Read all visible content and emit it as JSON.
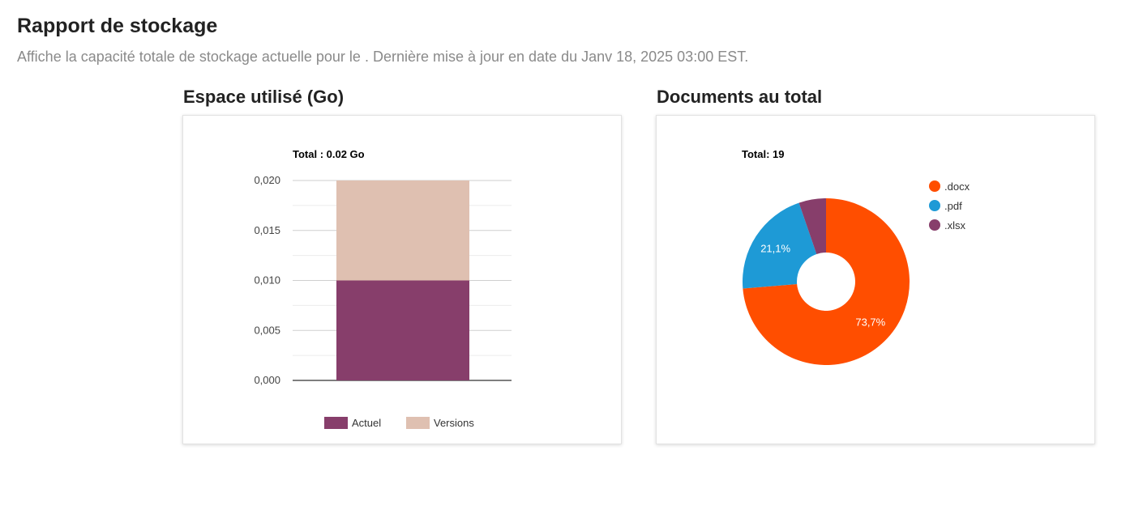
{
  "page": {
    "title": "Rapport de stockage",
    "subtitle": "Affiche la capacité totale de stockage actuelle pour le . Dernière mise à jour en date du Janv 18, 2025 03:00 EST."
  },
  "storage_section": {
    "title": "Espace utilisé (Go)"
  },
  "documents_section": {
    "title": "Documents au total"
  },
  "chart_data": [
    {
      "type": "bar",
      "stacked": true,
      "title": "Total : 0.02 Go",
      "categories": [
        ""
      ],
      "series": [
        {
          "name": "Actuel",
          "values": [
            0.01
          ],
          "color": "#873e6b"
        },
        {
          "name": "Versions",
          "values": [
            0.01
          ],
          "color": "#dfc0b1"
        }
      ],
      "ylim": [
        0,
        0.02
      ],
      "yticks": [
        "0,000",
        "0,005",
        "0,010",
        "0,015",
        "0,020"
      ],
      "ytick_values": [
        0,
        0.005,
        0.01,
        0.015,
        0.02
      ],
      "grid": true,
      "legend": "bottom"
    },
    {
      "type": "pie",
      "donut": true,
      "title": "Total: 19",
      "slices": [
        {
          "label": ".docx",
          "count": 14,
          "percent_label": "73,7%",
          "color": "#ff4e00"
        },
        {
          "label": ".pdf",
          "count": 4,
          "percent_label": "21,1%",
          "color": "#1e9ad6"
        },
        {
          "label": ".xlsx",
          "count": 1,
          "percent_label": "",
          "color": "#873e6b"
        }
      ],
      "legend": "top-right"
    }
  ]
}
